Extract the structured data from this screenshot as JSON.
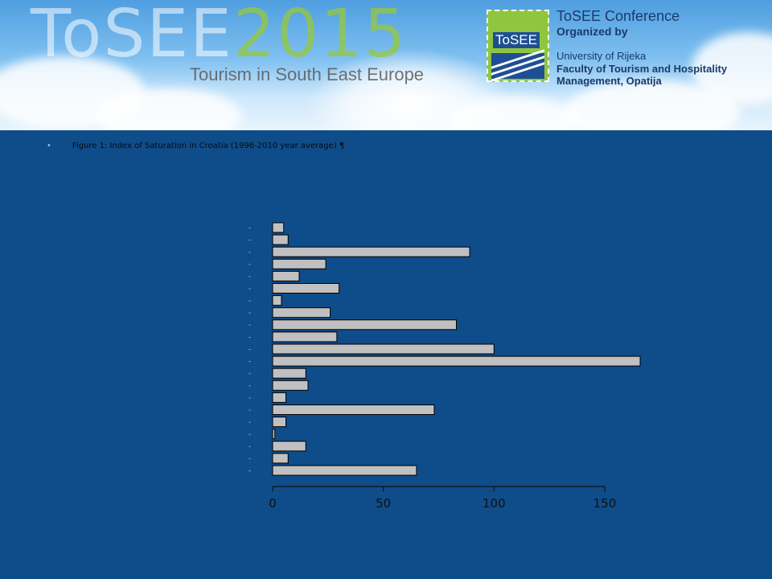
{
  "header": {
    "logo_word": "ToSEE",
    "logo_year": "2015",
    "tagline": "Tourism in South East Europe",
    "badge_text": "ToSEE",
    "conference_title": "ToSEE Conference",
    "organized_by": "Organized by",
    "university": "University of Rijeka",
    "faculty_line1": "Faculty of Tourism and Hospitality",
    "faculty_line2": "Management, Opatija"
  },
  "caption": {
    "bullet": "•",
    "text": "Figure 1: Index of Saturation in Croatia (1996-2010 year average) ¶"
  },
  "chart_data": {
    "type": "bar",
    "orientation": "horizontal",
    "title": "",
    "xlabel": "",
    "ylabel": "",
    "xlim": [
      0,
      150
    ],
    "xticks": [
      0,
      50,
      100,
      150
    ],
    "grid": false,
    "bar_color": "#c0c0c0",
    "values": [
      5,
      7,
      89,
      24,
      12,
      30,
      4,
      26,
      83,
      29,
      100,
      166,
      15,
      16,
      6,
      73,
      6,
      1,
      15,
      7,
      65
    ]
  },
  "colors": {
    "background": "#0f4c8a",
    "axis": "#111111",
    "bar_fill": "#c0c0c0",
    "bar_stroke": "#000000"
  }
}
